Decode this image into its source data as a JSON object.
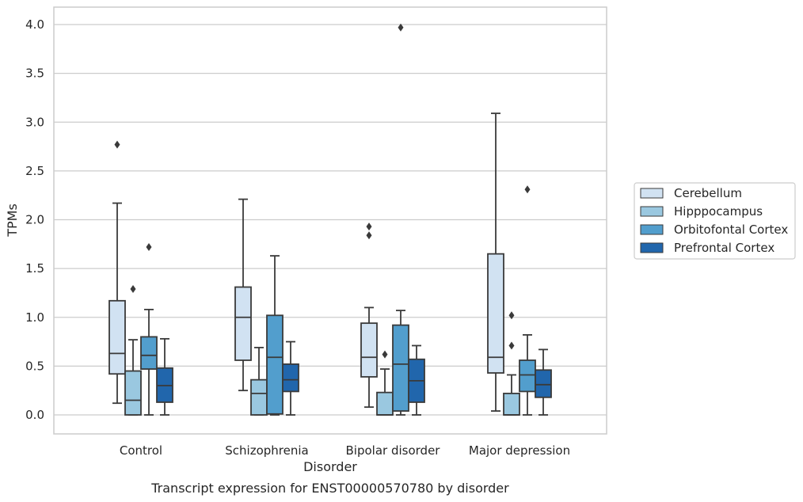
{
  "chart_data": {
    "type": "box",
    "xlabel": "Disorder",
    "ylabel": "TPMs",
    "caption": "Transcript expression for ENST00000570780 by disorder",
    "ylim": [
      -0.19,
      4.18
    ],
    "yticks": [
      "0.0",
      "0.5",
      "1.0",
      "1.5",
      "2.0",
      "2.5",
      "3.0",
      "3.5",
      "4.0"
    ],
    "ytick_values": [
      0.0,
      0.5,
      1.0,
      1.5,
      2.0,
      2.5,
      3.0,
      3.5,
      4.0
    ],
    "grid": "horizontal",
    "legend_position": "right",
    "categories": [
      "Control",
      "Schizophrenia",
      "Bipolar disorder",
      "Major depression"
    ],
    "series": [
      {
        "name": "Cerebellum",
        "color": "#d1e2f2",
        "boxes": [
          {
            "whislo": 0.12,
            "q1": 0.42,
            "med": 0.63,
            "q3": 1.17,
            "whishi": 2.17,
            "fliers": [
              2.77
            ]
          },
          {
            "whislo": 0.25,
            "q1": 0.56,
            "med": 1.0,
            "q3": 1.31,
            "whishi": 2.21,
            "fliers": []
          },
          {
            "whislo": 0.08,
            "q1": 0.39,
            "med": 0.59,
            "q3": 0.94,
            "whishi": 1.1,
            "fliers": [
              1.84,
              1.93
            ]
          },
          {
            "whislo": 0.04,
            "q1": 0.43,
            "med": 0.59,
            "q3": 1.65,
            "whishi": 3.09,
            "fliers": []
          }
        ]
      },
      {
        "name": "Hipppocampus",
        "color": "#9ac8e0",
        "boxes": [
          {
            "whislo": 0.0,
            "q1": 0.0,
            "med": 0.15,
            "q3": 0.45,
            "whishi": 0.77,
            "fliers": [
              1.29
            ]
          },
          {
            "whislo": 0.0,
            "q1": 0.0,
            "med": 0.22,
            "q3": 0.36,
            "whishi": 0.69,
            "fliers": []
          },
          {
            "whislo": 0.0,
            "q1": 0.0,
            "med": 0.0,
            "q3": 0.23,
            "whishi": 0.47,
            "fliers": [
              0.62
            ]
          },
          {
            "whislo": 0.0,
            "q1": 0.0,
            "med": 0.0,
            "q3": 0.22,
            "whishi": 0.41,
            "fliers": [
              0.71,
              1.02
            ]
          }
        ]
      },
      {
        "name": "Orbitofontal Cortex",
        "color": "#529ecd",
        "boxes": [
          {
            "whislo": 0.0,
            "q1": 0.47,
            "med": 0.61,
            "q3": 0.8,
            "whishi": 1.08,
            "fliers": [
              1.72
            ]
          },
          {
            "whislo": 0.0,
            "q1": 0.01,
            "med": 0.59,
            "q3": 1.02,
            "whishi": 1.63,
            "fliers": []
          },
          {
            "whislo": 0.0,
            "q1": 0.04,
            "med": 0.52,
            "q3": 0.92,
            "whishi": 1.07,
            "fliers": [
              3.97
            ]
          },
          {
            "whislo": 0.0,
            "q1": 0.24,
            "med": 0.41,
            "q3": 0.56,
            "whishi": 0.82,
            "fliers": [
              2.31
            ]
          }
        ]
      },
      {
        "name": "Prefrontal Cortex",
        "color": "#2166ac",
        "boxes": [
          {
            "whislo": 0.0,
            "q1": 0.13,
            "med": 0.3,
            "q3": 0.48,
            "whishi": 0.78,
            "fliers": []
          },
          {
            "whislo": 0.0,
            "q1": 0.24,
            "med": 0.36,
            "q3": 0.52,
            "whishi": 0.75,
            "fliers": []
          },
          {
            "whislo": 0.0,
            "q1": 0.13,
            "med": 0.35,
            "q3": 0.57,
            "whishi": 0.71,
            "fliers": []
          },
          {
            "whislo": 0.0,
            "q1": 0.18,
            "med": 0.31,
            "q3": 0.46,
            "whishi": 0.67,
            "fliers": []
          }
        ]
      }
    ]
  }
}
